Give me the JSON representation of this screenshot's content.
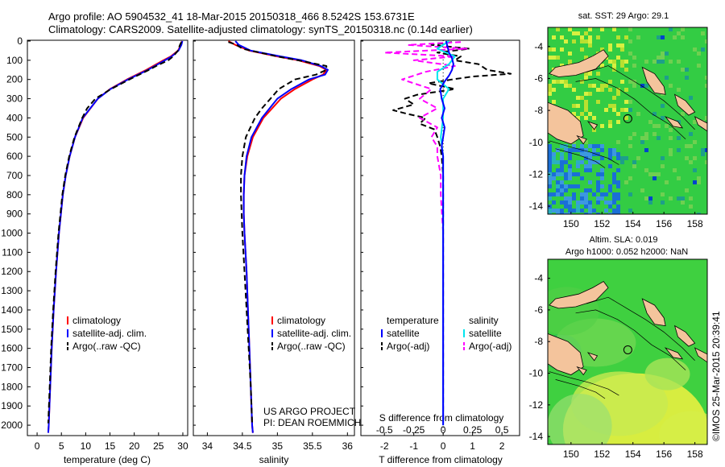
{
  "header": {
    "line1": "Argo profile: AO 5904532_41 18-Mar-2015 20150318_466 8.5242S 153.6731E",
    "line2": "Climatology: CARS2009. Satellite-adjusted climatology: synTS_20150318.nc (0.14d earlier)"
  },
  "credits": {
    "project": "US ARGO PROJECT",
    "pi": "PI: DEAN ROEMMICH",
    "stamp": "©IMOS 25-Mar-2015 20:39:41"
  },
  "colors": {
    "climatology": "#ff0000",
    "satellite": "#0000ff",
    "argo": "#000000",
    "satellite_salinity": "#00e5ee",
    "argo_salinity": "#ff00ff",
    "land": "#f4c49c",
    "map_ocean": "#33cc44",
    "sla_ocean": "#3fd040"
  },
  "chart_data": [
    {
      "id": "temperature",
      "type": "line",
      "xlabel": "temperature (deg C)",
      "ylabel": "depth",
      "xlim": [
        -2,
        31
      ],
      "ylim": [
        2050,
        0
      ],
      "xticks": [
        0,
        5,
        10,
        15,
        20,
        25,
        30
      ],
      "yticks": [
        0,
        100,
        200,
        300,
        400,
        500,
        600,
        700,
        800,
        900,
        1000,
        1100,
        1200,
        1300,
        1400,
        1500,
        1600,
        1700,
        1800,
        1900,
        2000
      ],
      "legend": [
        "climatology",
        "satellite-adj. clim.",
        "Argo(..raw -QC)"
      ],
      "series": [
        {
          "name": "climatology",
          "depth": [
            0,
            20,
            50,
            80,
            100,
            150,
            200,
            250,
            300,
            400,
            500,
            600,
            700,
            800,
            900,
            1000,
            1200,
            1400,
            1600,
            1800,
            2000,
            2040
          ],
          "values": [
            29.8,
            29.6,
            29.0,
            27.5,
            26.0,
            22.5,
            18.5,
            15.0,
            12.5,
            9.5,
            7.8,
            6.7,
            5.9,
            5.3,
            4.9,
            4.5,
            3.9,
            3.4,
            3.0,
            2.7,
            2.4,
            2.3
          ]
        },
        {
          "name": "satellite-adj. clim.",
          "depth": [
            0,
            20,
            50,
            80,
            100,
            150,
            200,
            250,
            300,
            400,
            500,
            600,
            700,
            800,
            900,
            1000,
            1200,
            1400,
            1600,
            1800,
            2000,
            2040
          ],
          "values": [
            29.9,
            29.7,
            29.1,
            27.7,
            26.3,
            22.8,
            18.7,
            15.1,
            12.5,
            9.4,
            7.8,
            6.7,
            5.9,
            5.3,
            4.9,
            4.5,
            3.9,
            3.4,
            3.0,
            2.7,
            2.4,
            2.3
          ]
        },
        {
          "name": "Argo(..raw -QC)",
          "depth": [
            5,
            20,
            50,
            80,
            100,
            130,
            150,
            200,
            250,
            300,
            350,
            400,
            500,
            600,
            700,
            800,
            900,
            1000,
            1200,
            1400,
            1600,
            1800,
            1990
          ],
          "values": [
            29.7,
            29.4,
            29.0,
            28.0,
            27.0,
            24.5,
            23.0,
            19.0,
            15.2,
            12.0,
            10.3,
            9.3,
            7.7,
            6.6,
            5.8,
            5.2,
            4.8,
            4.4,
            3.8,
            3.3,
            2.9,
            2.6,
            2.3
          ]
        }
      ]
    },
    {
      "id": "salinity",
      "type": "line",
      "xlabel": "salinity",
      "ylabel": "depth",
      "xlim": [
        33.8,
        36.1
      ],
      "ylim": [
        2050,
        0
      ],
      "xticks": [
        34,
        34.5,
        35,
        35.5,
        36
      ],
      "legend": [
        "climatology",
        "satellite-adj. clim.",
        "Argo(..raw -QC)"
      ],
      "series": [
        {
          "name": "climatology",
          "depth": [
            0,
            20,
            50,
            80,
            100,
            130,
            150,
            175,
            200,
            250,
            300,
            400,
            500,
            600,
            700,
            800,
            900,
            1000,
            1200,
            1400,
            1600,
            1800,
            2000,
            2040
          ],
          "values": [
            34.3,
            34.4,
            34.6,
            35.0,
            35.3,
            35.6,
            35.7,
            35.65,
            35.5,
            35.25,
            35.05,
            34.8,
            34.65,
            34.57,
            34.53,
            34.52,
            34.52,
            34.53,
            34.56,
            34.58,
            34.6,
            34.62,
            34.64,
            34.65
          ]
        },
        {
          "name": "satellite-adj. clim.",
          "depth": [
            0,
            20,
            50,
            80,
            100,
            130,
            150,
            175,
            200,
            250,
            300,
            400,
            500,
            600,
            700,
            800,
            900,
            1000,
            1200,
            1400,
            1600,
            1800,
            2000,
            2040
          ],
          "values": [
            34.4,
            34.45,
            34.62,
            35.05,
            35.35,
            35.62,
            35.72,
            35.68,
            35.45,
            35.2,
            35.0,
            34.78,
            34.63,
            34.56,
            34.53,
            34.52,
            34.52,
            34.53,
            34.56,
            34.58,
            34.6,
            34.62,
            34.64,
            34.65
          ]
        },
        {
          "name": "Argo(..raw -QC)",
          "depth": [
            5,
            20,
            40,
            60,
            80,
            100,
            130,
            150,
            175,
            200,
            250,
            300,
            350,
            400,
            500,
            600,
            700,
            800,
            900,
            1000,
            1200,
            1400,
            1600,
            1800,
            1990
          ],
          "values": [
            34.3,
            34.42,
            34.5,
            34.75,
            35.0,
            35.3,
            35.7,
            35.7,
            35.55,
            35.25,
            35.02,
            34.9,
            34.78,
            34.68,
            34.55,
            34.5,
            34.48,
            34.48,
            34.49,
            34.5,
            34.53,
            34.56,
            34.59,
            34.62,
            34.64
          ]
        }
      ]
    },
    {
      "id": "difference",
      "type": "line",
      "title": "S difference from climatology",
      "xlabel": "T difference from climatology",
      "xlim": [
        -2.8,
        2.6
      ],
      "ylim": [
        2050,
        0
      ],
      "xticks_T": [
        -2,
        -1,
        0,
        1,
        2
      ],
      "xticks_S": [
        -0.5,
        -0.25,
        0,
        0.25,
        0.5
      ],
      "xticklabels_S": [
        "-0.5",
        "-0.25",
        "0",
        "0.25",
        "0.5"
      ],
      "legend_headings": [
        "temperature",
        "salinity"
      ],
      "legend": [
        "satellite",
        "Argo(-adj)",
        "satellite",
        "Argo(-adj)"
      ],
      "series": [
        {
          "name": "temperature satellite",
          "depth": [
            0,
            30,
            60,
            90,
            120,
            150,
            180,
            210,
            250,
            300,
            350,
            400,
            450,
            500,
            550,
            600,
            700,
            800,
            1000,
            1500,
            2000
          ],
          "values": [
            0.1,
            0.15,
            0.2,
            0.3,
            0.35,
            0.3,
            0.2,
            0.05,
            -0.1,
            -0.05,
            0.05,
            -0.05,
            0.05,
            0.0,
            -0.05,
            0.0,
            0.0,
            0.0,
            0.0,
            0.0,
            0.0
          ]
        },
        {
          "name": "temperature Argo(-adj)",
          "depth": [
            5,
            20,
            40,
            60,
            80,
            100,
            120,
            150,
            170,
            185,
            200,
            220,
            250,
            280,
            300,
            330,
            360,
            380,
            400,
            430,
            460,
            500,
            550,
            600,
            700,
            800,
            1000,
            1500,
            1990
          ],
          "values": [
            0.3,
            -0.4,
            0.9,
            -0.2,
            0.6,
            0.4,
            1.2,
            1.5,
            2.3,
            1.0,
            0.3,
            -0.5,
            0.4,
            -0.9,
            -1.3,
            -1.0,
            -1.7,
            -1.2,
            -0.6,
            -0.8,
            -0.3,
            -0.2,
            -0.1,
            -0.05,
            0.0,
            0.0,
            0.0,
            0.0,
            0.0
          ]
        },
        {
          "name": "salinity satellite",
          "depth": [
            0,
            40,
            80,
            120,
            160,
            200,
            250,
            300,
            400,
            500,
            600,
            700,
            800,
            1000,
            1500,
            2000
          ],
          "values": [
            0.05,
            -0.05,
            0.1,
            0.05,
            -0.05,
            -0.05,
            0.05,
            0.0,
            0.0,
            -0.02,
            0.0,
            0.0,
            0.0,
            0.0,
            0.0,
            0.0
          ]
        },
        {
          "name": "salinity Argo(-adj)",
          "depth": [
            5,
            20,
            40,
            60,
            80,
            100,
            130,
            160,
            200,
            250,
            300,
            350,
            400,
            450,
            500,
            550,
            600,
            700,
            800,
            1000,
            1500,
            1990
          ],
          "values": [
            0.15,
            -0.3,
            0.2,
            -0.5,
            0.1,
            -0.25,
            0.1,
            -0.15,
            -0.35,
            -0.1,
            -0.2,
            -0.05,
            -0.2,
            -0.05,
            -0.1,
            -0.05,
            -0.05,
            -0.02,
            -0.02,
            0.0,
            0.0,
            0.0
          ]
        }
      ]
    },
    {
      "id": "sst_map",
      "type": "heatmap",
      "title": "sat. SST: 29 Argo: 29.1",
      "xlim": [
        148.5,
        158.8
      ],
      "ylim": [
        -14.5,
        -2.8
      ],
      "xticks": [
        150,
        152,
        154,
        156,
        158
      ],
      "yticks": [
        -4,
        -6,
        -8,
        -10,
        -12,
        -14
      ],
      "marker": {
        "lon": 153.67,
        "lat": -8.52
      }
    },
    {
      "id": "sla_map",
      "type": "heatmap",
      "title1": "Altim. SLA: 0.019",
      "title2": "Argo h1000: 0.052 h2000: NaN",
      "xlim": [
        148.5,
        158.8
      ],
      "ylim": [
        -14.5,
        -2.8
      ],
      "xticks": [
        150,
        152,
        154,
        156,
        158
      ],
      "yticks": [
        -4,
        -6,
        -8,
        -10,
        -12,
        -14
      ],
      "marker": {
        "lon": 153.67,
        "lat": -8.52
      }
    }
  ]
}
